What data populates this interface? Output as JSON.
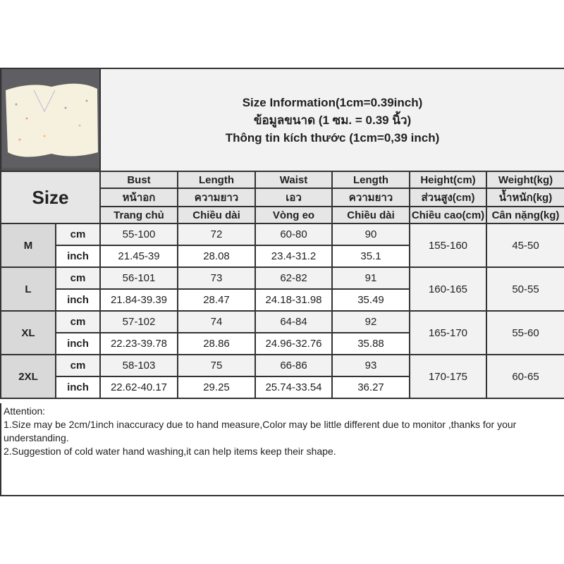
{
  "title": {
    "line1": "Size Information(1cm=0.39inch)",
    "line2": "ข้อมูลขนาด (1 ซม. = 0.39 นิ้ว)",
    "line3": "Thông tin kích thước (1cm=0,39 inch)"
  },
  "size_label": "Size",
  "headers": [
    [
      "Bust",
      "Length",
      "Waist",
      "Length",
      "Height(cm)",
      "Weight(kg)"
    ],
    [
      "หน้าอก",
      "ความยาว",
      "เอว",
      "ความยาว",
      "ส่วนสูง(cm)",
      "น้ำหนัก(kg)"
    ],
    [
      "Trang chủ",
      "Chiều dài",
      "Vòng eo",
      "Chiều dài",
      "Chiều cao(cm)",
      "Cân nặng(kg)"
    ]
  ],
  "units": {
    "cm": "cm",
    "inch": "inch"
  },
  "rows": [
    {
      "size": "M",
      "cm": [
        "55-100",
        "72",
        "60-80",
        "90"
      ],
      "inch": [
        "21.45-39",
        "28.08",
        "23.4-31.2",
        "35.1"
      ],
      "height": "155-160",
      "weight": "45-50"
    },
    {
      "size": "L",
      "cm": [
        "56-101",
        "73",
        "62-82",
        "91"
      ],
      "inch": [
        "21.84-39.39",
        "28.47",
        "24.18-31.98",
        "35.49"
      ],
      "height": "160-165",
      "weight": "50-55"
    },
    {
      "size": "XL",
      "cm": [
        "57-102",
        "74",
        "64-84",
        "92"
      ],
      "inch": [
        "22.23-39.78",
        "28.86",
        "24.96-32.76",
        "35.88"
      ],
      "height": "165-170",
      "weight": "55-60"
    },
    {
      "size": "2XL",
      "cm": [
        "58-103",
        "75",
        "66-86",
        "93"
      ],
      "inch": [
        "22.62-40.17",
        "29.25",
        "25.74-33.54",
        "36.27"
      ],
      "height": "170-175",
      "weight": "60-65"
    }
  ],
  "attention": {
    "heading": "Attention:",
    "line1": "1.Size may be 2cm/1inch inaccuracy due to hand measure,Color may be little different due to monitor ,thanks for your understanding.",
    "line2": "2.Suggestion of cold water hand washing,it can help items keep their shape."
  }
}
